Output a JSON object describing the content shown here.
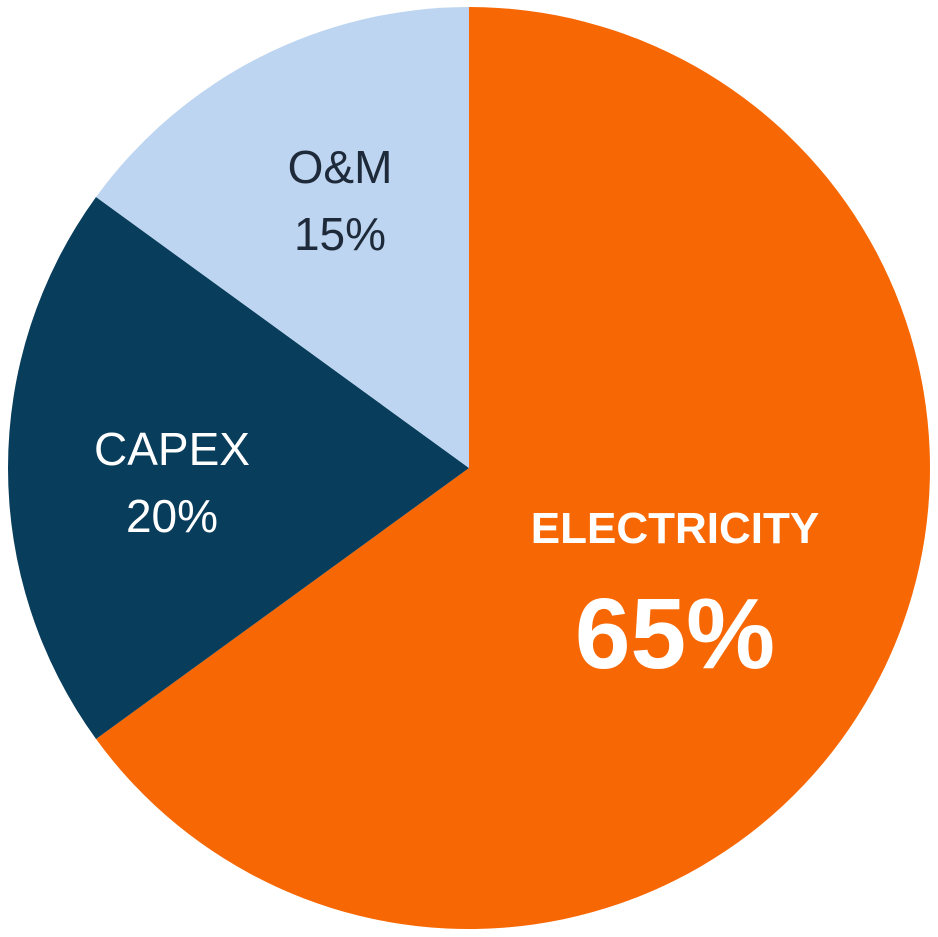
{
  "chart_data": {
    "type": "pie",
    "title": "",
    "slices": [
      {
        "label": "ELECTRICITY",
        "value": 65,
        "value_label": "65%",
        "color": "#F76703",
        "text_color": "#FFFFFF"
      },
      {
        "label": "CAPEX",
        "value": 20,
        "value_label": "20%",
        "color": "#083D5C",
        "text_color": "#FFFFFF"
      },
      {
        "label": "O&M",
        "value": 15,
        "value_label": "15%",
        "color": "#BDD5F0",
        "text_color": "#1E2A3A"
      }
    ],
    "start_angle_deg": 0,
    "direction": "clockwise",
    "legend": "none",
    "labels_inside_slices": true
  }
}
